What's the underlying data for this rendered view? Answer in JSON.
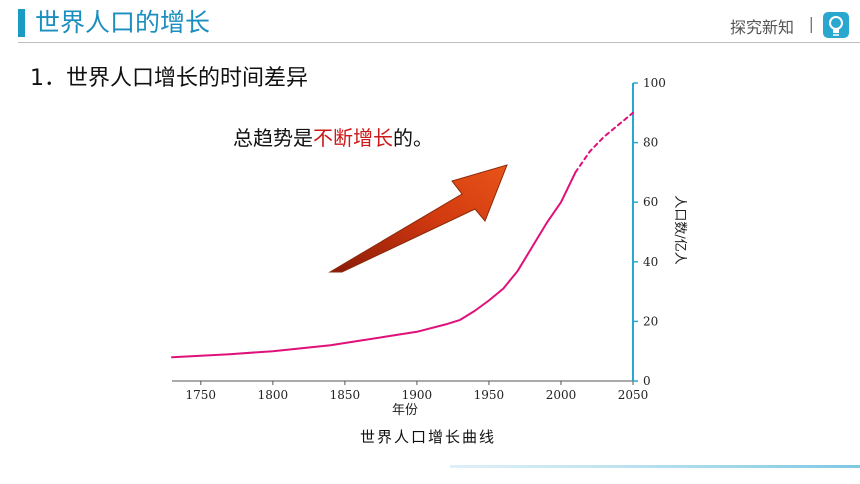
{
  "header": {
    "title": "世界人口的增长",
    "right_text": "探究新知",
    "separator": "|",
    "icon": "lightbulb-icon",
    "accent_color": "#1a9bc4"
  },
  "section": {
    "number": "1．",
    "title": "世界人口增长的时间差异"
  },
  "trend": {
    "prefix": "总趋势是",
    "highlight": "不断增长",
    "suffix": "的。",
    "highlight_color": "#cc1a1a",
    "arrow_color": "#d23a10"
  },
  "chart_caption": "世界人口增长曲线",
  "chart_data": {
    "type": "line",
    "title": "世界人口增长曲线",
    "xlabel": "年份",
    "ylabel": "人口数/亿人",
    "xlim": [
      1730,
      2050
    ],
    "ylim": [
      0,
      100
    ],
    "x_ticks": [
      1750,
      1800,
      1850,
      1900,
      1950,
      2000,
      2050
    ],
    "y_ticks": [
      0,
      20,
      40,
      60,
      80,
      100
    ],
    "line_color": "#e0107a",
    "axis_color": "#2aa7cf",
    "grid": false,
    "series": [
      {
        "style": "solid",
        "x": [
          1730,
          1750,
          1770,
          1800,
          1820,
          1840,
          1860,
          1880,
          1900,
          1920,
          1930,
          1940,
          1950,
          1960,
          1970,
          1980,
          1990,
          2000,
          2010
        ],
        "y": [
          8,
          8.5,
          9,
          10,
          11,
          12,
          13.5,
          15,
          16.5,
          19,
          20.5,
          23.5,
          27,
          31,
          37,
          45,
          53,
          60,
          70
        ]
      },
      {
        "style": "dashed",
        "x": [
          2010,
          2020,
          2030,
          2040,
          2050
        ],
        "y": [
          70,
          77,
          82,
          86,
          90
        ]
      }
    ]
  }
}
